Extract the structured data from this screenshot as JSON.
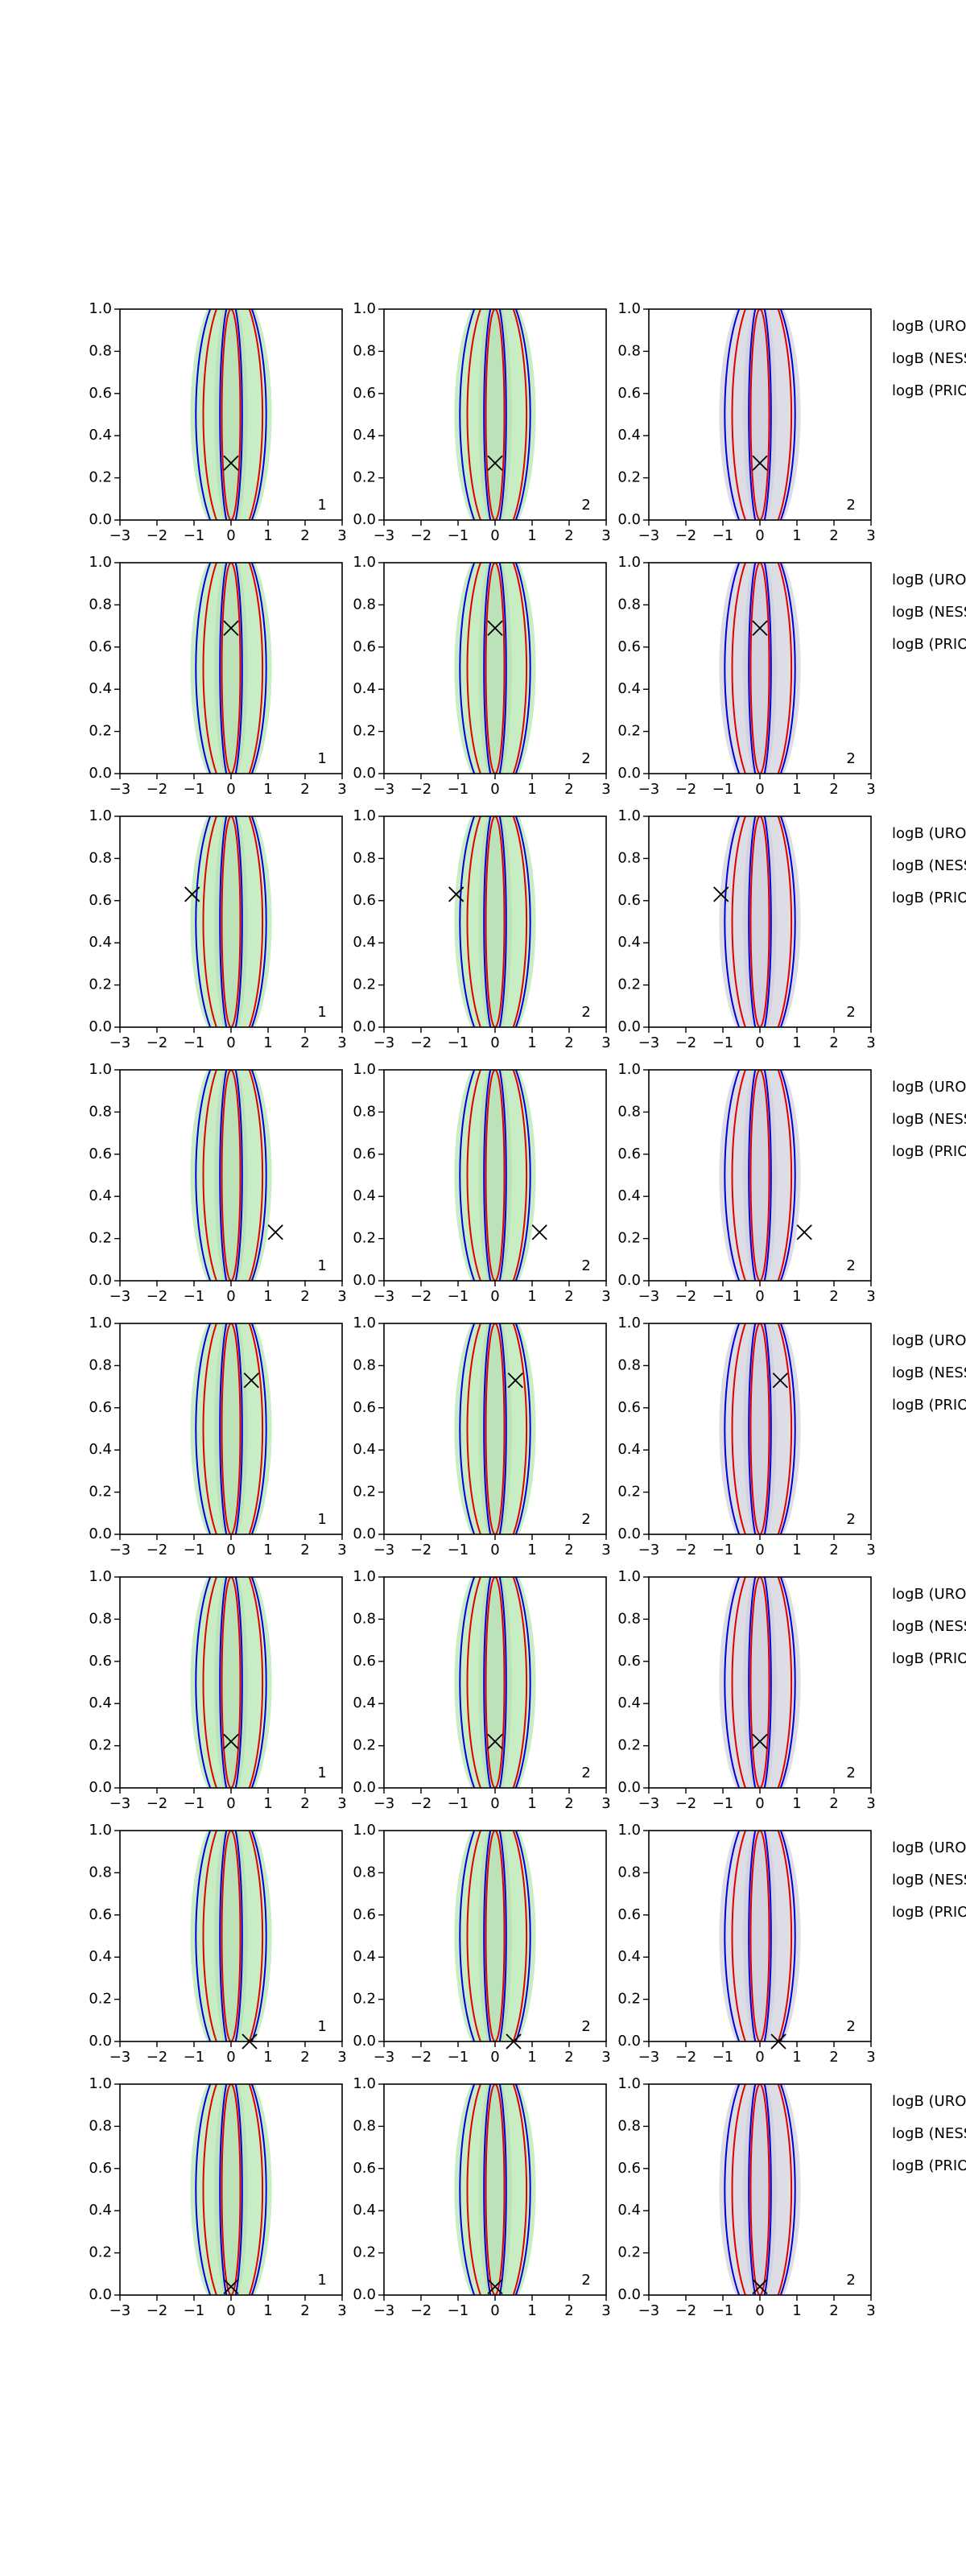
{
  "chart_data": [
    {
      "type": "contour",
      "xlim": [
        -3,
        3
      ],
      "ylim": [
        0,
        1
      ],
      "xticks": [
        {
          "value": -3,
          "label": "−3"
        },
        {
          "value": -2,
          "label": "−2"
        },
        {
          "value": -1,
          "label": "−1"
        },
        0,
        1,
        2,
        3
      ],
      "yticks": [
        {
          "value": 0,
          "label": "0.0"
        },
        0.2,
        0.4,
        0.6,
        0.8,
        {
          "value": 1,
          "label": "1.0"
        }
      ],
      "x": [
        0
      ],
      "values": [
        0.27
      ],
      "label": "1",
      "fill": "#c8ecc4"
    },
    {
      "type": "contour",
      "xlim": [
        -3,
        3
      ],
      "ylim": [
        0,
        1
      ],
      "xticks": [
        {
          "value": -3,
          "label": "−3"
        },
        {
          "value": -2,
          "label": "−2"
        },
        {
          "value": -1,
          "label": "−1"
        },
        0,
        1,
        2,
        3
      ],
      "yticks": [
        {
          "value": 0,
          "label": "0.0"
        },
        0.2,
        0.4,
        0.6,
        0.8,
        {
          "value": 1,
          "label": "1.0"
        }
      ],
      "x": [
        0
      ],
      "values": [
        0.27
      ],
      "label": "2",
      "fill": "#c8ecc4"
    },
    {
      "type": "contour",
      "xlim": [
        -3,
        3
      ],
      "ylim": [
        0,
        1
      ],
      "xticks": [
        {
          "value": -3,
          "label": "−3"
        },
        {
          "value": -2,
          "label": "−2"
        },
        {
          "value": -1,
          "label": "−1"
        },
        0,
        1,
        2,
        3
      ],
      "yticks": [
        {
          "value": 0,
          "label": "0.0"
        },
        0.2,
        0.4,
        0.6,
        0.8,
        {
          "value": 1,
          "label": "1.0"
        }
      ],
      "x": [
        0
      ],
      "values": [
        0.27
      ],
      "label": "2",
      "fill": "#dddde6"
    },
    {
      "type": "contour",
      "xlim": [
        -3,
        3
      ],
      "ylim": [
        0,
        1
      ],
      "xticks": [
        {
          "value": -3,
          "label": "−3"
        },
        {
          "value": -2,
          "label": "−2"
        },
        {
          "value": -1,
          "label": "−1"
        },
        0,
        1,
        2,
        3
      ],
      "yticks": [
        {
          "value": 0,
          "label": "0.0"
        },
        0.2,
        0.4,
        0.6,
        0.8,
        {
          "value": 1,
          "label": "1.0"
        }
      ],
      "x": [
        0
      ],
      "values": [
        0.69
      ],
      "label": "1",
      "fill": "#c8ecc4"
    },
    {
      "type": "contour",
      "xlim": [
        -3,
        3
      ],
      "ylim": [
        0,
        1
      ],
      "xticks": [
        {
          "value": -3,
          "label": "−3"
        },
        {
          "value": -2,
          "label": "−2"
        },
        {
          "value": -1,
          "label": "−1"
        },
        0,
        1,
        2,
        3
      ],
      "yticks": [
        {
          "value": 0,
          "label": "0.0"
        },
        0.2,
        0.4,
        0.6,
        0.8,
        {
          "value": 1,
          "label": "1.0"
        }
      ],
      "x": [
        0
      ],
      "values": [
        0.69
      ],
      "label": "2",
      "fill": "#c8ecc4"
    },
    {
      "type": "contour",
      "xlim": [
        -3,
        3
      ],
      "ylim": [
        0,
        1
      ],
      "xticks": [
        {
          "value": -3,
          "label": "−3"
        },
        {
          "value": -2,
          "label": "−2"
        },
        {
          "value": -1,
          "label": "−1"
        },
        0,
        1,
        2,
        3
      ],
      "yticks": [
        {
          "value": 0,
          "label": "0.0"
        },
        0.2,
        0.4,
        0.6,
        0.8,
        {
          "value": 1,
          "label": "1.0"
        }
      ],
      "x": [
        0
      ],
      "values": [
        0.69
      ],
      "label": "2",
      "fill": "#dddde6"
    },
    {
      "type": "contour",
      "xlim": [
        -3,
        3
      ],
      "ylim": [
        0,
        1
      ],
      "xticks": [
        {
          "value": -3,
          "label": "−3"
        },
        {
          "value": -2,
          "label": "−2"
        },
        {
          "value": -1,
          "label": "−1"
        },
        0,
        1,
        2,
        3
      ],
      "yticks": [
        {
          "value": 0,
          "label": "0.0"
        },
        0.2,
        0.4,
        0.6,
        0.8,
        {
          "value": 1,
          "label": "1.0"
        }
      ],
      "x": [
        -1.05
      ],
      "values": [
        0.63
      ],
      "label": "1",
      "fill": "#c8ecc4"
    },
    {
      "type": "contour",
      "xlim": [
        -3,
        3
      ],
      "ylim": [
        0,
        1
      ],
      "xticks": [
        {
          "value": -3,
          "label": "−3"
        },
        {
          "value": -2,
          "label": "−2"
        },
        {
          "value": -1,
          "label": "−1"
        },
        0,
        1,
        2,
        3
      ],
      "yticks": [
        {
          "value": 0,
          "label": "0.0"
        },
        0.2,
        0.4,
        0.6,
        0.8,
        {
          "value": 1,
          "label": "1.0"
        }
      ],
      "x": [
        -1.05
      ],
      "values": [
        0.63
      ],
      "label": "2",
      "fill": "#c8ecc4"
    },
    {
      "type": "contour",
      "xlim": [
        -3,
        3
      ],
      "ylim": [
        0,
        1
      ],
      "xticks": [
        {
          "value": -3,
          "label": "−3"
        },
        {
          "value": -2,
          "label": "−2"
        },
        {
          "value": -1,
          "label": "−1"
        },
        0,
        1,
        2,
        3
      ],
      "yticks": [
        {
          "value": 0,
          "label": "0.0"
        },
        0.2,
        0.4,
        0.6,
        0.8,
        {
          "value": 1,
          "label": "1.0"
        }
      ],
      "x": [
        -1.05
      ],
      "values": [
        0.63
      ],
      "label": "2",
      "fill": "#dddde6"
    },
    {
      "type": "contour",
      "xlim": [
        -3,
        3
      ],
      "ylim": [
        0,
        1
      ],
      "xticks": [
        {
          "value": -3,
          "label": "−3"
        },
        {
          "value": -2,
          "label": "−2"
        },
        {
          "value": -1,
          "label": "−1"
        },
        0,
        1,
        2,
        3
      ],
      "yticks": [
        {
          "value": 0,
          "label": "0.0"
        },
        0.2,
        0.4,
        0.6,
        0.8,
        {
          "value": 1,
          "label": "1.0"
        }
      ],
      "x": [
        1.2
      ],
      "values": [
        0.23
      ],
      "label": "1",
      "fill": "#c8ecc4"
    },
    {
      "type": "contour",
      "xlim": [
        -3,
        3
      ],
      "ylim": [
        0,
        1
      ],
      "xticks": [
        {
          "value": -3,
          "label": "−3"
        },
        {
          "value": -2,
          "label": "−2"
        },
        {
          "value": -1,
          "label": "−1"
        },
        0,
        1,
        2,
        3
      ],
      "yticks": [
        {
          "value": 0,
          "label": "0.0"
        },
        0.2,
        0.4,
        0.6,
        0.8,
        {
          "value": 1,
          "label": "1.0"
        }
      ],
      "x": [
        1.2
      ],
      "values": [
        0.23
      ],
      "label": "2",
      "fill": "#c8ecc4"
    },
    {
      "type": "contour",
      "xlim": [
        -3,
        3
      ],
      "ylim": [
        0,
        1
      ],
      "xticks": [
        {
          "value": -3,
          "label": "−3"
        },
        {
          "value": -2,
          "label": "−2"
        },
        {
          "value": -1,
          "label": "−1"
        },
        0,
        1,
        2,
        3
      ],
      "yticks": [
        {
          "value": 0,
          "label": "0.0"
        },
        0.2,
        0.4,
        0.6,
        0.8,
        {
          "value": 1,
          "label": "1.0"
        }
      ],
      "x": [
        1.2
      ],
      "values": [
        0.23
      ],
      "label": "2",
      "fill": "#dddde6"
    },
    {
      "type": "contour",
      "xlim": [
        -3,
        3
      ],
      "ylim": [
        0,
        1
      ],
      "xticks": [
        {
          "value": -3,
          "label": "−3"
        },
        {
          "value": -2,
          "label": "−2"
        },
        {
          "value": -1,
          "label": "−1"
        },
        0,
        1,
        2,
        3
      ],
      "yticks": [
        {
          "value": 0,
          "label": "0.0"
        },
        0.2,
        0.4,
        0.6,
        0.8,
        {
          "value": 1,
          "label": "1.0"
        }
      ],
      "x": [
        0.55
      ],
      "values": [
        0.73
      ],
      "label": "1",
      "fill": "#c8ecc4"
    },
    {
      "type": "contour",
      "xlim": [
        -3,
        3
      ],
      "ylim": [
        0,
        1
      ],
      "xticks": [
        {
          "value": -3,
          "label": "−3"
        },
        {
          "value": -2,
          "label": "−2"
        },
        {
          "value": -1,
          "label": "−1"
        },
        0,
        1,
        2,
        3
      ],
      "yticks": [
        {
          "value": 0,
          "label": "0.0"
        },
        0.2,
        0.4,
        0.6,
        0.8,
        {
          "value": 1,
          "label": "1.0"
        }
      ],
      "x": [
        0.55
      ],
      "values": [
        0.73
      ],
      "label": "2",
      "fill": "#c8ecc4"
    },
    {
      "type": "contour",
      "xlim": [
        -3,
        3
      ],
      "ylim": [
        0,
        1
      ],
      "xticks": [
        {
          "value": -3,
          "label": "−3"
        },
        {
          "value": -2,
          "label": "−2"
        },
        {
          "value": -1,
          "label": "−1"
        },
        0,
        1,
        2,
        3
      ],
      "yticks": [
        {
          "value": 0,
          "label": "0.0"
        },
        0.2,
        0.4,
        0.6,
        0.8,
        {
          "value": 1,
          "label": "1.0"
        }
      ],
      "x": [
        0.55
      ],
      "values": [
        0.73
      ],
      "label": "2",
      "fill": "#dddde6"
    },
    {
      "type": "contour",
      "xlim": [
        -3,
        3
      ],
      "ylim": [
        0,
        1
      ],
      "xticks": [
        {
          "value": -3,
          "label": "−3"
        },
        {
          "value": -2,
          "label": "−2"
        },
        {
          "value": -1,
          "label": "−1"
        },
        0,
        1,
        2,
        3
      ],
      "yticks": [
        {
          "value": 0,
          "label": "0.0"
        },
        0.2,
        0.4,
        0.6,
        0.8,
        {
          "value": 1,
          "label": "1.0"
        }
      ],
      "x": [
        0
      ],
      "values": [
        0.22
      ],
      "label": "1",
      "fill": "#c8ecc4"
    },
    {
      "type": "contour",
      "xlim": [
        -3,
        3
      ],
      "ylim": [
        0,
        1
      ],
      "xticks": [
        {
          "value": -3,
          "label": "−3"
        },
        {
          "value": -2,
          "label": "−2"
        },
        {
          "value": -1,
          "label": "−1"
        },
        0,
        1,
        2,
        3
      ],
      "yticks": [
        {
          "value": 0,
          "label": "0.0"
        },
        0.2,
        0.4,
        0.6,
        0.8,
        {
          "value": 1,
          "label": "1.0"
        }
      ],
      "x": [
        0
      ],
      "values": [
        0.22
      ],
      "label": "2",
      "fill": "#c8ecc4"
    },
    {
      "type": "contour",
      "xlim": [
        -3,
        3
      ],
      "ylim": [
        0,
        1
      ],
      "xticks": [
        {
          "value": -3,
          "label": "−3"
        },
        {
          "value": -2,
          "label": "−2"
        },
        {
          "value": -1,
          "label": "−1"
        },
        0,
        1,
        2,
        3
      ],
      "yticks": [
        {
          "value": 0,
          "label": "0.0"
        },
        0.2,
        0.4,
        0.6,
        0.8,
        {
          "value": 1,
          "label": "1.0"
        }
      ],
      "x": [
        0
      ],
      "values": [
        0.22
      ],
      "label": "2",
      "fill": "#dddde6"
    },
    {
      "type": "contour",
      "xlim": [
        -3,
        3
      ],
      "ylim": [
        0,
        1
      ],
      "xticks": [
        {
          "value": -3,
          "label": "−3"
        },
        {
          "value": -2,
          "label": "−2"
        },
        {
          "value": -1,
          "label": "−1"
        },
        0,
        1,
        2,
        3
      ],
      "yticks": [
        {
          "value": 0,
          "label": "0.0"
        },
        0.2,
        0.4,
        0.6,
        0.8,
        {
          "value": 1,
          "label": "1.0"
        }
      ],
      "x": [
        0.5
      ],
      "values": [
        0.0
      ],
      "label": "1",
      "fill": "#c8ecc4"
    },
    {
      "type": "contour",
      "xlim": [
        -3,
        3
      ],
      "ylim": [
        0,
        1
      ],
      "xticks": [
        {
          "value": -3,
          "label": "−3"
        },
        {
          "value": -2,
          "label": "−2"
        },
        {
          "value": -1,
          "label": "−1"
        },
        0,
        1,
        2,
        3
      ],
      "yticks": [
        {
          "value": 0,
          "label": "0.0"
        },
        0.2,
        0.4,
        0.6,
        0.8,
        {
          "value": 1,
          "label": "1.0"
        }
      ],
      "x": [
        0.5
      ],
      "values": [
        0.0
      ],
      "label": "2",
      "fill": "#c8ecc4"
    },
    {
      "type": "contour",
      "xlim": [
        -3,
        3
      ],
      "ylim": [
        0,
        1
      ],
      "xticks": [
        {
          "value": -3,
          "label": "−3"
        },
        {
          "value": -2,
          "label": "−2"
        },
        {
          "value": -1,
          "label": "−1"
        },
        0,
        1,
        2,
        3
      ],
      "yticks": [
        {
          "value": 0,
          "label": "0.0"
        },
        0.2,
        0.4,
        0.6,
        0.8,
        {
          "value": 1,
          "label": "1.0"
        }
      ],
      "x": [
        0.5
      ],
      "values": [
        0.0
      ],
      "label": "2",
      "fill": "#dddde6"
    },
    {
      "type": "contour",
      "xlim": [
        -3,
        3
      ],
      "ylim": [
        0,
        1
      ],
      "xticks": [
        {
          "value": -3,
          "label": "−3"
        },
        {
          "value": -2,
          "label": "−2"
        },
        {
          "value": -1,
          "label": "−1"
        },
        0,
        1,
        2,
        3
      ],
      "yticks": [
        {
          "value": 0,
          "label": "0.0"
        },
        0.2,
        0.4,
        0.6,
        0.8,
        {
          "value": 1,
          "label": "1.0"
        }
      ],
      "x": [
        0
      ],
      "values": [
        0.04
      ],
      "label": "1",
      "fill": "#c8ecc4"
    },
    {
      "type": "contour",
      "xlim": [
        -3,
        3
      ],
      "ylim": [
        0,
        1
      ],
      "xticks": [
        {
          "value": -3,
          "label": "−3"
        },
        {
          "value": -2,
          "label": "−2"
        },
        {
          "value": -1,
          "label": "−1"
        },
        0,
        1,
        2,
        3
      ],
      "yticks": [
        {
          "value": 0,
          "label": "0.0"
        },
        0.2,
        0.4,
        0.6,
        0.8,
        {
          "value": 1,
          "label": "1.0"
        }
      ],
      "x": [
        0
      ],
      "values": [
        0.04
      ],
      "label": "2",
      "fill": "#c8ecc4"
    },
    {
      "type": "contour",
      "xlim": [
        -3,
        3
      ],
      "ylim": [
        0,
        1
      ],
      "xticks": [
        {
          "value": -3,
          "label": "−3"
        },
        {
          "value": -2,
          "label": "−2"
        },
        {
          "value": -1,
          "label": "−1"
        },
        0,
        1,
        2,
        3
      ],
      "yticks": [
        {
          "value": 0,
          "label": "0.0"
        },
        0.2,
        0.4,
        0.6,
        0.8,
        {
          "value": 1,
          "label": "1.0"
        }
      ],
      "x": [
        0
      ],
      "values": [
        0.04
      ],
      "label": "2",
      "fill": "#dddde6"
    }
  ],
  "side_labels": [
    [
      "logB (UROB) =",
      "logB (NESS) =",
      "logB (PRIO) ="
    ],
    [
      "logB (UROB) =",
      "logB (NESS) =",
      "logB (PRIO) ="
    ],
    [
      "logB (UROB) =",
      "logB (NESS) =",
      "logB (PRIO) ="
    ],
    [
      "logB (UROB) =",
      "logB (NESS) =",
      "logB (PRIO) ="
    ],
    [
      "logB (UROB) =",
      "logB (NESS) =",
      "logB (PRIO) ="
    ],
    [
      "logB (UROB) =",
      "logB (NESS) =",
      "logB (PRIO) ="
    ],
    [
      "logB (UROB) =",
      "logB (NESS) =",
      "logB (PRIO) ="
    ],
    [
      "logB (UROB) =",
      "logB (NESS) =",
      "logB (PRIO) ="
    ]
  ]
}
